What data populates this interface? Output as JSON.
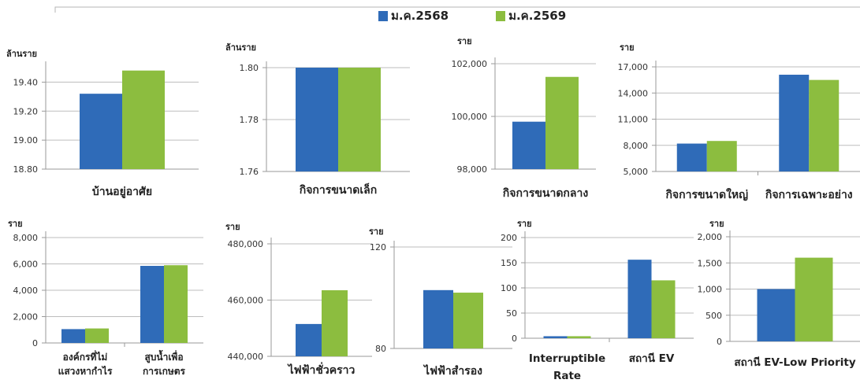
{
  "colors": {
    "s2568": "#2f6bb8",
    "s2569": "#8cbd3f",
    "grid": "#bdbdbd",
    "axis": "#9a9a9a"
  },
  "legend": {
    "s2568": "ม.ค.2568",
    "s2569": "ม.ค.2569"
  },
  "chart_data": [
    {
      "type": "bar",
      "unit": "ล้านราย",
      "ylim": [
        18.8,
        19.5
      ],
      "yticks": [
        "19.40",
        "19.20",
        "19.00",
        "18.80"
      ],
      "categories": [
        "บ้านอยู่อาศัย"
      ],
      "series": [
        {
          "name": "ม.ค.2568",
          "values": [
            19.32
          ]
        },
        {
          "name": "ม.ค.2569",
          "values": [
            19.48
          ]
        }
      ]
    },
    {
      "type": "bar",
      "unit": "ล้านราย",
      "ylim": [
        1.76,
        1.8
      ],
      "yticks": [
        "1.80",
        "1.78",
        "1.76"
      ],
      "categories": [
        "กิจการขนาดเล็ก"
      ],
      "series": [
        {
          "name": "ม.ค.2568",
          "values": [
            1.8
          ]
        },
        {
          "name": "ม.ค.2569",
          "values": [
            1.8
          ]
        }
      ]
    },
    {
      "type": "bar",
      "unit": "ราย",
      "ylim": [
        98000,
        102000
      ],
      "yticks": [
        "102,000",
        "100,000",
        "98,000"
      ],
      "categories": [
        "กิจการขนาดกลาง"
      ],
      "series": [
        {
          "name": "ม.ค.2568",
          "values": [
            99800
          ]
        },
        {
          "name": "ม.ค.2569",
          "values": [
            101500
          ]
        }
      ]
    },
    {
      "type": "bar",
      "unit": "ราย",
      "ylim": [
        5000,
        17000
      ],
      "yticks": [
        "17,000",
        "14,000",
        "11,000",
        "8,000",
        "5,000"
      ],
      "categories": [
        "กิจการขนาดใหญ่",
        "กิจการเฉพาะอย่าง"
      ],
      "series": [
        {
          "name": "ม.ค.2568",
          "values": [
            8200,
            16100
          ]
        },
        {
          "name": "ม.ค.2569",
          "values": [
            8500,
            15500
          ]
        }
      ]
    },
    {
      "type": "bar",
      "unit": "ราย",
      "ylim": [
        0,
        8000
      ],
      "yticks": [
        "8,000",
        "6,000",
        "4,000",
        "2,000",
        "0"
      ],
      "categories": [
        "องค์กรที่ไม่|แสวงหากำไร",
        "สูบน้ำเพื่อ|การเกษตร"
      ],
      "series": [
        {
          "name": "ม.ค.2568",
          "values": [
            1050,
            5850
          ]
        },
        {
          "name": "ม.ค.2569",
          "values": [
            1100,
            5900
          ]
        }
      ]
    },
    {
      "type": "bar",
      "unit": "ราย",
      "ylim": [
        440000,
        480000
      ],
      "yticks": [
        "480,000",
        "460,000",
        "440,000"
      ],
      "categories": [
        "ไฟฟ้าชั่วคราว"
      ],
      "series": [
        {
          "name": "ม.ค.2568",
          "values": [
            451500
          ]
        },
        {
          "name": "ม.ค.2569",
          "values": [
            463500
          ]
        }
      ]
    },
    {
      "type": "bar",
      "unit": "ราย",
      "ylim": [
        80,
        120
      ],
      "yticks": [
        "120",
        "80"
      ],
      "categories": [
        "ไฟฟ้าสำรอง"
      ],
      "series": [
        {
          "name": "ม.ค.2568",
          "values": [
            103
          ]
        },
        {
          "name": "ม.ค.2569",
          "values": [
            102
          ]
        }
      ]
    },
    {
      "type": "bar",
      "unit": "ราย",
      "ylim": [
        0,
        200
      ],
      "yticks": [
        "200",
        "150",
        "100",
        "50",
        "0"
      ],
      "categories": [
        "Interruptible|Rate",
        "สถานี EV"
      ],
      "series": [
        {
          "name": "ม.ค.2568",
          "values": [
            4,
            156
          ]
        },
        {
          "name": "ม.ค.2569",
          "values": [
            4,
            115
          ]
        }
      ]
    },
    {
      "type": "bar",
      "unit": "ราย",
      "ylim": [
        0,
        2000
      ],
      "yticks": [
        "2,000",
        "1,500",
        "1,000",
        "500",
        "0"
      ],
      "categories": [
        "สถานี EV-Low Priority"
      ],
      "series": [
        {
          "name": "ม.ค.2568",
          "values": [
            1000
          ]
        },
        {
          "name": "ม.ค.2569",
          "values": [
            1600
          ]
        }
      ]
    }
  ]
}
